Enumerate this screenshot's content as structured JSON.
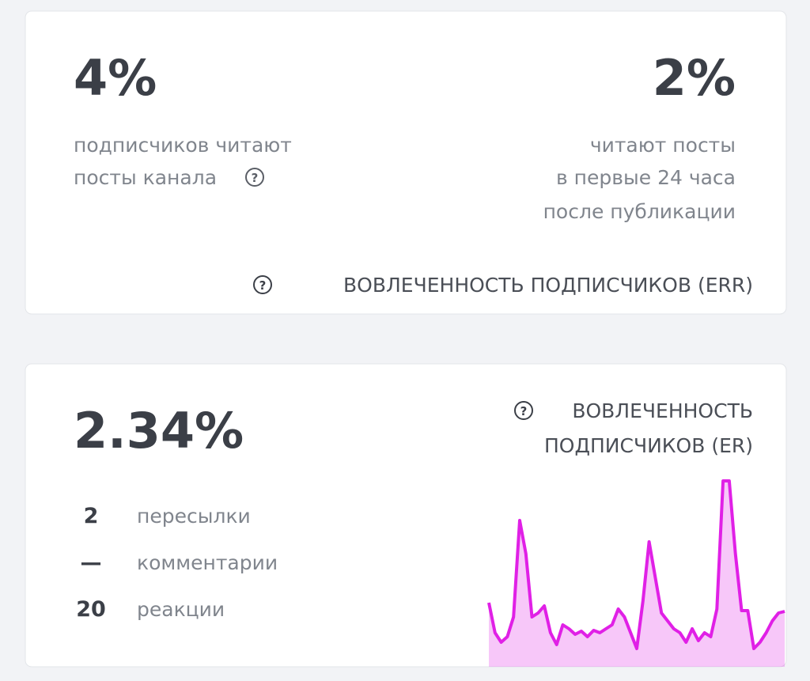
{
  "err_card": {
    "left": {
      "value": "4%",
      "lines": [
        "подписчиков читают",
        "посты канала"
      ]
    },
    "right": {
      "value": "2%",
      "lines": [
        "читают посты",
        "в первые 24 часа",
        "после публикации"
      ]
    },
    "footer": "ВОВЛЕЧЕННОСТЬ ПОДПИСЧИКОВ (ERR)"
  },
  "er_card": {
    "value": "2.34%",
    "title_lines": [
      "ВОВЛЕЧЕННОСТЬ",
      "ПОДПИСЧИКОВ (ER)"
    ],
    "rows": [
      {
        "count": "2",
        "label": "пересылки"
      },
      {
        "count": "—",
        "label": "комментарии"
      },
      {
        "count": "20",
        "label": "реакции"
      }
    ],
    "sparkline": {
      "type": "line",
      "color": "#e020e6",
      "values": [
        81,
        43,
        31,
        38,
        63,
        185,
        143,
        63,
        68,
        77,
        43,
        28,
        53,
        48,
        41,
        45,
        38,
        46,
        43,
        48,
        53,
        73,
        63,
        43,
        23,
        83,
        158,
        113,
        68,
        58,
        48,
        43,
        31,
        48,
        33,
        43,
        38,
        73,
        235,
        235,
        143,
        71,
        71,
        23,
        31,
        43,
        58,
        68,
        70
      ]
    }
  }
}
